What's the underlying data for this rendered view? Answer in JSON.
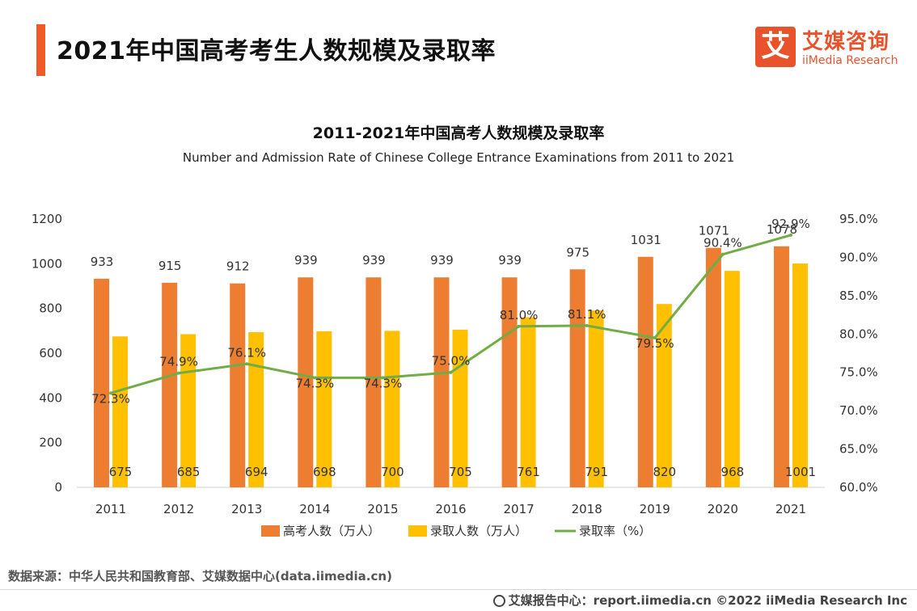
{
  "header": {
    "title": "2021年中国高考考生人数规模及录取率",
    "logo_mark": "艾",
    "logo_cn": "艾媒咨询",
    "logo_en": "iiMedia Research"
  },
  "colors": {
    "accent": "#f05a28",
    "bar1": "#ed7d31",
    "bar2": "#ffc000",
    "line": "#70ad47"
  },
  "chart_data": {
    "type": "bar",
    "title": "2011-2021年中国高考人数规模及录取率",
    "subtitle": "Number and Admission Rate of Chinese College Entrance Examinations from 2011 to 2021",
    "categories": [
      "2011",
      "2012",
      "2013",
      "2014",
      "2015",
      "2016",
      "2017",
      "2018",
      "2019",
      "2020",
      "2021"
    ],
    "series": [
      {
        "name": "高考人数（万人）",
        "kind": "bar",
        "axis": "left",
        "values": [
          933,
          915,
          912,
          939,
          939,
          939,
          939,
          975,
          1031,
          1071,
          1078
        ]
      },
      {
        "name": "录取人数（万人）",
        "kind": "bar",
        "axis": "left",
        "values": [
          675,
          685,
          694,
          698,
          700,
          705,
          761,
          791,
          820,
          968,
          1001
        ]
      },
      {
        "name": "录取率（%）",
        "kind": "line",
        "axis": "right",
        "values": [
          72.3,
          74.9,
          76.1,
          74.3,
          74.3,
          75.0,
          81.0,
          81.1,
          79.5,
          90.4,
          92.9
        ],
        "labels": [
          "72.3%",
          "74.9%",
          "76.1%",
          "74.3%",
          "74.3%",
          "75.0%",
          "81.0%",
          "81.1%",
          "79.5%",
          "90.4%",
          "92.9%"
        ]
      }
    ],
    "y_left": {
      "min": 0,
      "max": 1200,
      "ticks": [
        "0",
        "200",
        "400",
        "600",
        "800",
        "1000",
        "1200"
      ]
    },
    "y_right": {
      "min": 60,
      "max": 95,
      "ticks": [
        "60.0%",
        "65.0%",
        "70.0%",
        "75.0%",
        "80.0%",
        "85.0%",
        "90.0%",
        "95.0%"
      ]
    },
    "legend": "bottom",
    "grid": false
  },
  "footer": {
    "source": "数据来源：中华人民共和国教育部、艾媒数据中心(data.iimedia.cn)",
    "report": "艾媒报告中心：report.iimedia.cn  ©2022  iiMedia Research  Inc"
  }
}
